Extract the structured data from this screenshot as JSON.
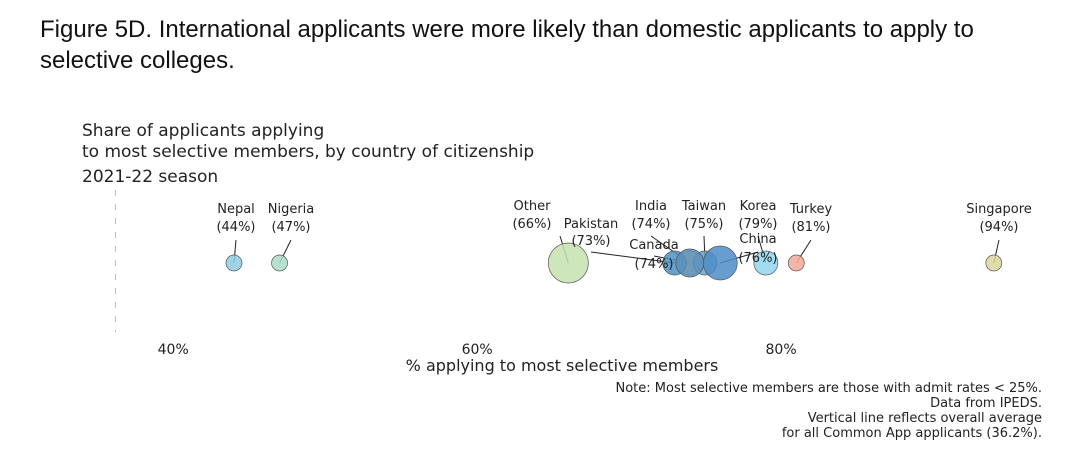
{
  "page": {
    "figure_title": "Figure 5D. International applicants were more likely than domestic applicants to apply to selective colleges."
  },
  "chart_data": {
    "type": "scatter",
    "title": "Share of applicants applying\nto most selective members, by country of citizenship",
    "subtitle": "2021-22 season",
    "xlabel": "% applying to most selective members",
    "xlim": [
      36.5,
      100
    ],
    "x_ticks": [
      {
        "value": 40,
        "label": "40%"
      },
      {
        "value": 60,
        "label": "60%"
      },
      {
        "value": 80,
        "label": "80%"
      }
    ],
    "reference_line": {
      "value": 36.2
    },
    "note": [
      "Note: Most selective members are those with admit rates < 25%.",
      "Data from IPEDS.",
      "Vertical line reflects overall average",
      "for all Common App applicants (36.2%)."
    ],
    "points": [
      {
        "country": "Nepal",
        "value": 44,
        "label": "(44%)",
        "color": "#8ecde3",
        "size": 1
      },
      {
        "country": "Nigeria",
        "value": 47,
        "label": "(47%)",
        "color": "#a9dcc4",
        "size": 1
      },
      {
        "country": "Other",
        "value": 66,
        "label": "(66%)",
        "color": "#c6e3ae",
        "size": 6
      },
      {
        "country": "Pakistan",
        "value": 73,
        "label": "(73%)",
        "color": "#4a93c4",
        "size": 2
      },
      {
        "country": "Canada",
        "value": 74,
        "label": "(74%)",
        "color": "#e2e0a7",
        "size": 2
      },
      {
        "country": "India",
        "value": 74,
        "label": "(74%)",
        "color": "#5b8fbd",
        "size": 4
      },
      {
        "country": "Taiwan",
        "value": 75,
        "label": "(75%)",
        "color": "#6ba4c8",
        "size": 2
      },
      {
        "country": "China",
        "value": 76,
        "label": "(76%)",
        "color": "#4e8cc8",
        "size": 5
      },
      {
        "country": "Korea",
        "value": 79,
        "label": "(79%)",
        "color": "#8fd7f0",
        "size": 2
      },
      {
        "country": "Turkey",
        "value": 81,
        "label": "(81%)",
        "color": "#f3a99a",
        "size": 1
      },
      {
        "country": "Singapore",
        "value": 94,
        "label": "(94%)",
        "color": "#d9d59c",
        "size": 1
      }
    ]
  }
}
